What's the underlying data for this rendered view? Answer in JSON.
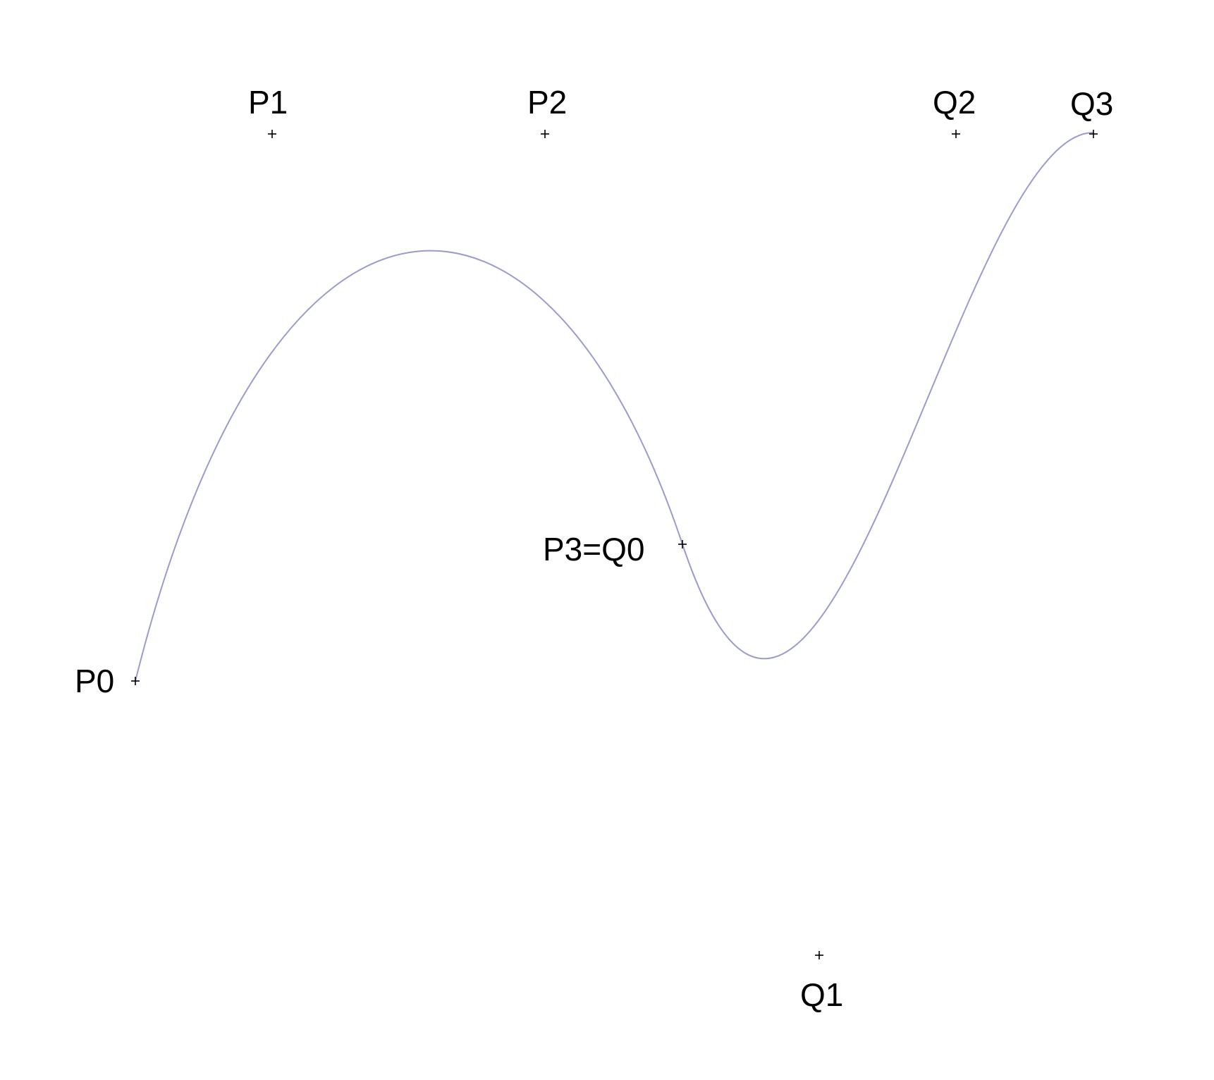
{
  "diagram": {
    "curve_color": "#9b9bd0",
    "marker_color": "#000000",
    "points": [
      {
        "id": "p0",
        "label": "P0"
      },
      {
        "id": "p1",
        "label": "P1"
      },
      {
        "id": "p2",
        "label": "P2"
      },
      {
        "id": "p3q0",
        "label": "P3=Q0"
      },
      {
        "id": "q1",
        "label": "Q1"
      },
      {
        "id": "q2",
        "label": "Q2"
      },
      {
        "id": "q3",
        "label": "Q3"
      }
    ]
  }
}
